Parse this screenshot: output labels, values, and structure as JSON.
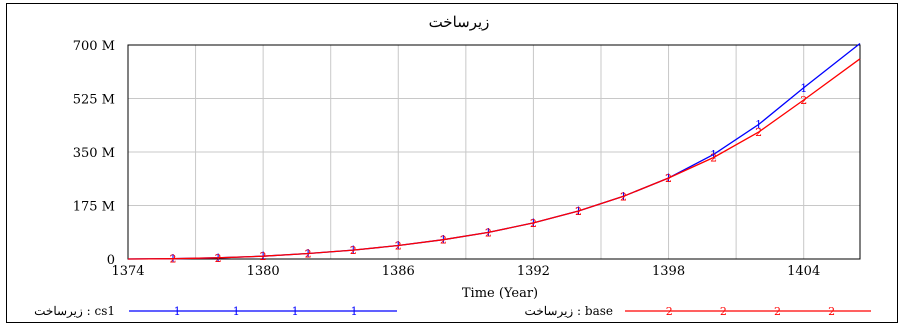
{
  "chart_data": {
    "type": "line",
    "title": "زیرساخت",
    "xlabel": "Time (Year)",
    "ylabel": "",
    "xlim": [
      1374,
      1406.5
    ],
    "ylim": [
      0,
      700
    ],
    "x_ticks": [
      "1374",
      "1380",
      "1386",
      "1392",
      "1398",
      "1404"
    ],
    "x_tick_values": [
      1374,
      1380,
      1386,
      1392,
      1398,
      1404
    ],
    "y_ticks": [
      "0",
      "175 M",
      "350 M",
      "525 M",
      "700 M"
    ],
    "y_tick_values": [
      0,
      175,
      350,
      525,
      700
    ],
    "y_unit": "M",
    "grid": true,
    "legend_position": "bottom",
    "series": [
      {
        "name": "زیرساخت : cs1",
        "color": "#0000ff",
        "marker": "1",
        "x": [
          1374,
          1376,
          1378,
          1380,
          1382,
          1384,
          1386,
          1388,
          1390,
          1392,
          1394,
          1396,
          1398,
          1400,
          1402,
          1404,
          1406.5
        ],
        "values": [
          0,
          1,
          4,
          9,
          18,
          29,
          44,
          63,
          87,
          118,
          157,
          205,
          265,
          342,
          440,
          560,
          705
        ]
      },
      {
        "name": "زیرساخت : base",
        "color": "#ff0000",
        "marker": "2",
        "x": [
          1374,
          1376,
          1378,
          1380,
          1382,
          1384,
          1386,
          1388,
          1390,
          1392,
          1394,
          1396,
          1398,
          1400,
          1402,
          1404,
          1406.5
        ],
        "values": [
          0,
          1,
          4,
          9,
          18,
          29,
          44,
          63,
          87,
          118,
          157,
          205,
          265,
          332,
          415,
          520,
          655
        ]
      }
    ],
    "legend": [
      {
        "label": "زیرساخت : cs1",
        "marker": "1",
        "color": "#0000ff"
      },
      {
        "label": "زیرساخت : base",
        "marker": "2",
        "color": "#ff0000"
      }
    ]
  }
}
